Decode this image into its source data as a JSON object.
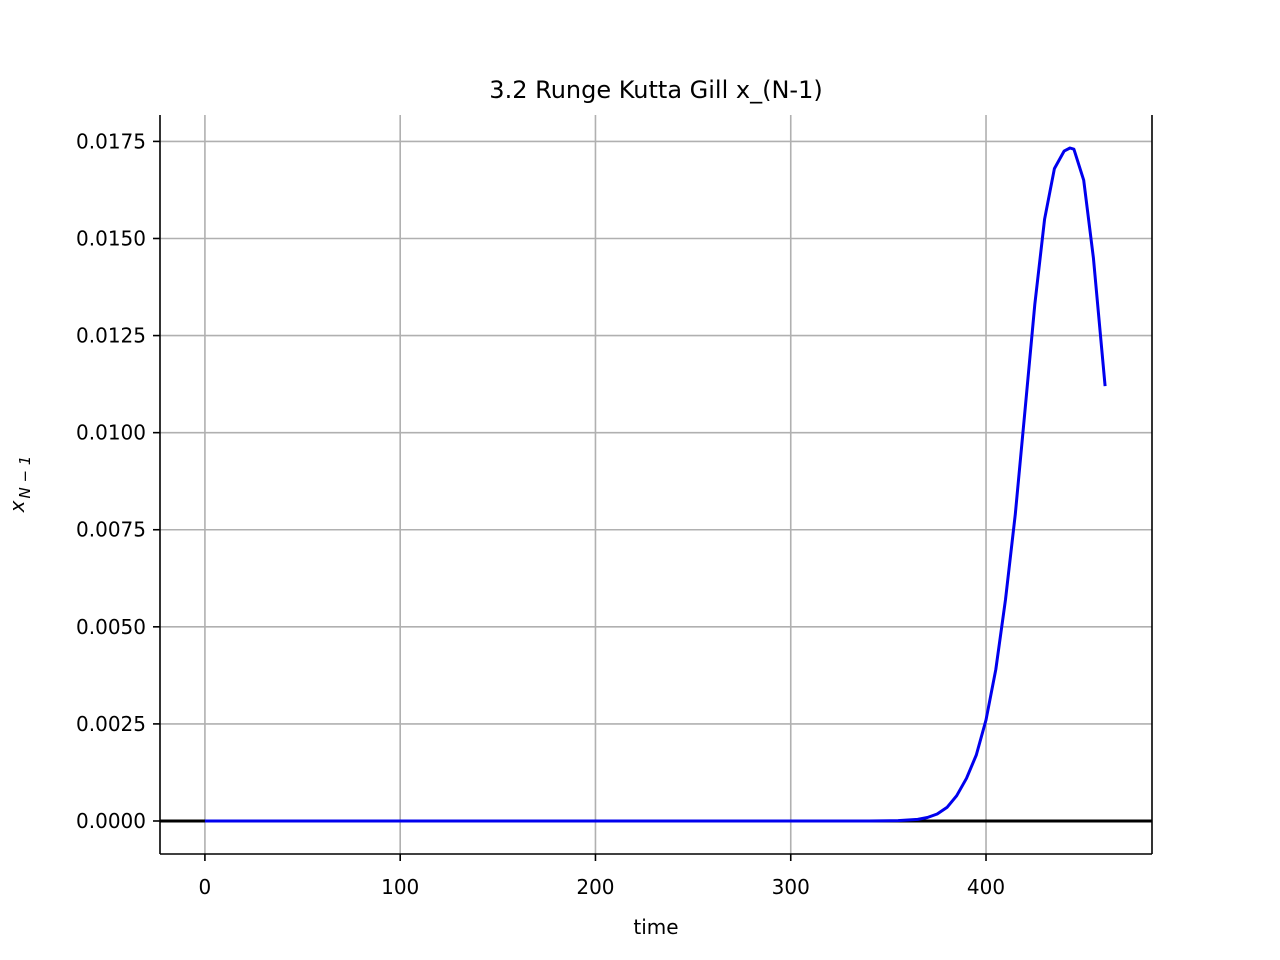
{
  "chart_data": {
    "type": "line",
    "title": "3.2 Runge Kutta Gill x_(N-1)",
    "xlabel": "time",
    "ylabel_base": "x",
    "ylabel_sub": "N − 1",
    "xlim": [
      -23,
      485
    ],
    "ylim": [
      -0.00085,
      0.01818
    ],
    "xticks": [
      0,
      100,
      200,
      300,
      400
    ],
    "xtick_labels": [
      "0",
      "100",
      "200",
      "300",
      "400"
    ],
    "yticks": [
      0.0,
      0.0025,
      0.005,
      0.0075,
      0.01,
      0.0125,
      0.015,
      0.0175
    ],
    "ytick_labels": [
      "0.0000",
      "0.0025",
      "0.0050",
      "0.0075",
      "0.0100",
      "0.0125",
      "0.0150",
      "0.0175"
    ],
    "grid": true,
    "colors": {
      "series": "#0000ee",
      "zero_line": "#000000",
      "grid": "#b0b0b0"
    },
    "series": [
      {
        "x": [
          0,
          50,
          100,
          150,
          200,
          250,
          300,
          340,
          355,
          365,
          370,
          375,
          380,
          385,
          390,
          395,
          400,
          405,
          410,
          415,
          420,
          425,
          430,
          435,
          440,
          443,
          445,
          450,
          455,
          461
        ],
        "y": [
          0,
          0,
          0,
          0,
          0,
          0,
          0,
          0,
          1e-05,
          4e-05,
          9e-05,
          0.00018,
          0.00035,
          0.00065,
          0.0011,
          0.0017,
          0.0026,
          0.0039,
          0.0057,
          0.0079,
          0.0106,
          0.0133,
          0.0155,
          0.0168,
          0.01725,
          0.01733,
          0.0173,
          0.0165,
          0.0145,
          0.0112
        ]
      }
    ],
    "zero_line": 0
  }
}
